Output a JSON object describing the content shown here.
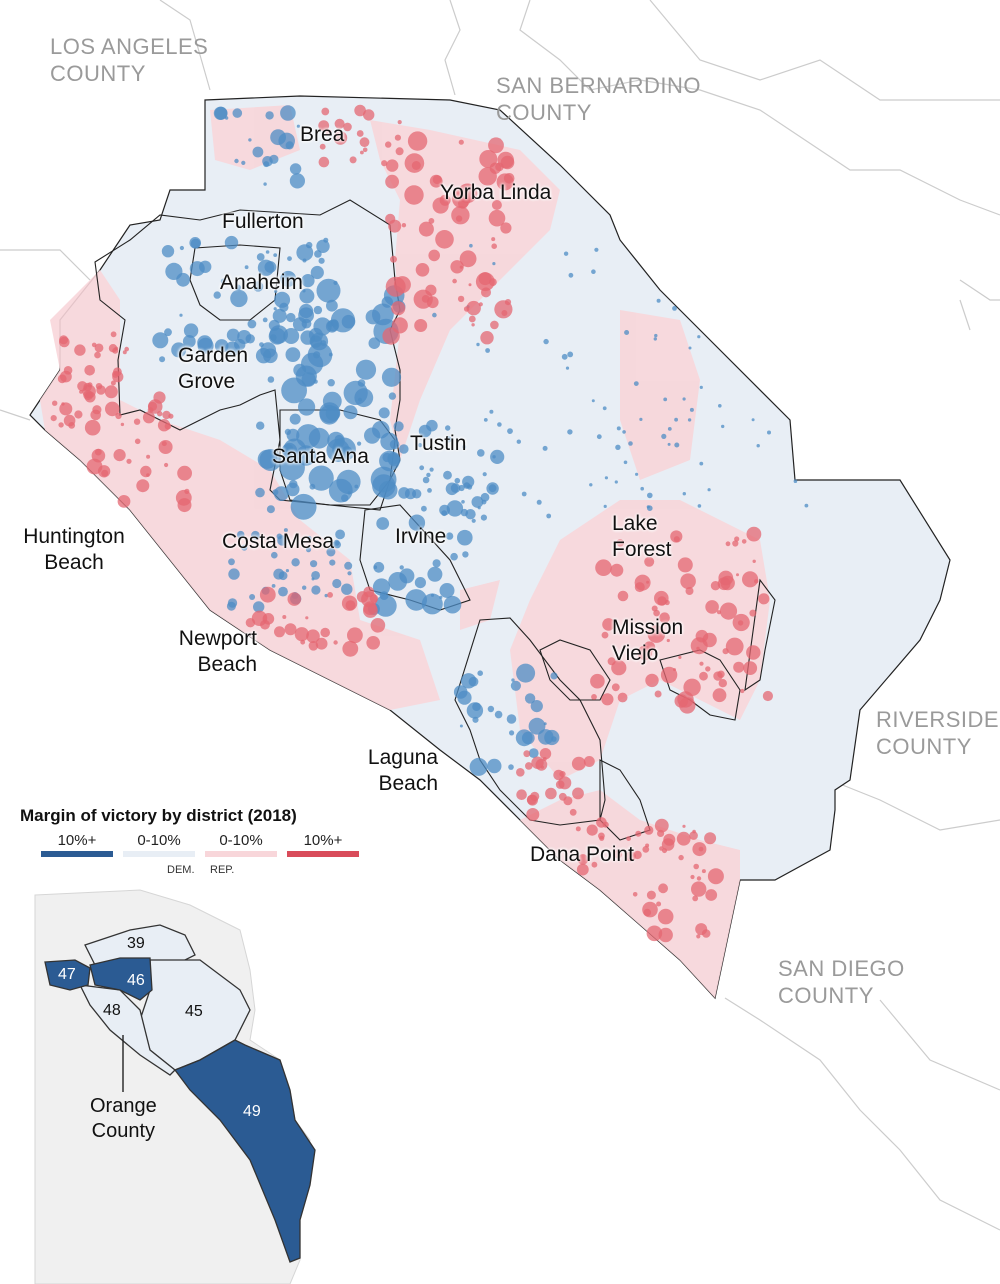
{
  "colors": {
    "dem_strong": "#2b5b93",
    "dem_lean": "#e8eef5",
    "rep_lean": "#f8d6da",
    "rep_strong": "#d94c5a",
    "dem_dot": "#4e8cc4",
    "rep_dot": "#e46772",
    "county_border": "#cccccc",
    "county_label": "#9a9a9a"
  },
  "counties": {
    "los_angeles": [
      "LOS ANGELES",
      "COUNTY"
    ],
    "san_bernardino": [
      "SAN BERNARDINO",
      "COUNTY"
    ],
    "riverside": [
      "RIVERSIDE",
      "COUNTY"
    ],
    "san_diego": [
      "SAN DIEGO",
      "COUNTY"
    ]
  },
  "cities": {
    "brea": "Brea",
    "yorba_linda": "Yorba Linda",
    "fullerton": "Fullerton",
    "anaheim": "Anaheim",
    "garden_grove": [
      "Garden",
      "Grove"
    ],
    "tustin": "Tustin",
    "santa_ana": "Santa Ana",
    "huntington_beach": [
      "Huntington",
      "Beach"
    ],
    "costa_mesa": "Costa Mesa",
    "irvine": "Irvine",
    "lake_forest": [
      "Lake",
      "Forest"
    ],
    "mission_viejo": [
      "Mission",
      "Viejo"
    ],
    "newport_beach": [
      "Newport",
      "Beach"
    ],
    "laguna_beach": [
      "Laguna",
      "Beach"
    ],
    "dana_point": "Dana Point"
  },
  "legend": {
    "title": "Margin of victory by district (2018)",
    "items": [
      {
        "label": "10%+",
        "color": "#2b5b93"
      },
      {
        "label": "0-10%",
        "color": "#e8eef5"
      },
      {
        "label": "0-10%",
        "color": "#f8d6da"
      },
      {
        "label": "10%+",
        "color": "#d94c5a"
      }
    ],
    "dem_label": "DEM.",
    "rep_label": "REP."
  },
  "inset": {
    "districts": {
      "d39": "39",
      "d45": "45",
      "d46": "46",
      "d47": "47",
      "d48": "48",
      "d49": "49"
    },
    "caption": [
      "Orange",
      "County"
    ]
  }
}
